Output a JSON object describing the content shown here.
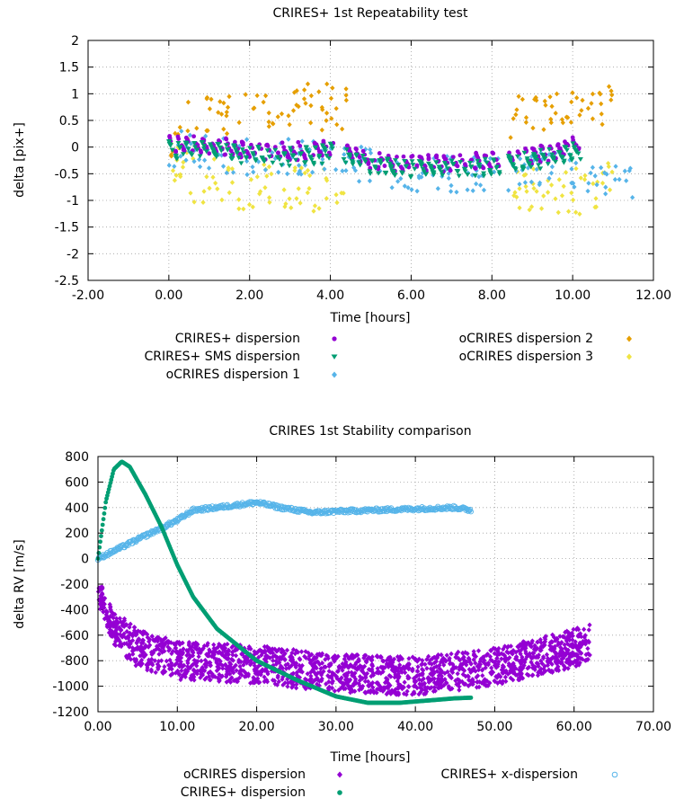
{
  "chart_data": [
    {
      "type": "scatter",
      "title": "CRIRES+ 1st Repeatability test",
      "xlabel": "Time [hours]",
      "ylabel": "delta [pix+]",
      "xlim": [
        -2,
        12
      ],
      "ylim": [
        -2.5,
        2
      ],
      "xticks": [
        "-2.00",
        "0.00",
        "2.00",
        "4.00",
        "6.00",
        "8.00",
        "10.00",
        "12.00"
      ],
      "yticks": [
        "2",
        "1.5",
        "1",
        "0.5",
        "0",
        "-0.5",
        "-1",
        "-1.5",
        "-2",
        "-2.5"
      ],
      "grid": true,
      "legend_position": "bottom",
      "series": [
        {
          "name": "CRIRES+ dispersion",
          "color": "#9400d3",
          "marker": "circle",
          "segments": [
            [
              0,
              0.05
            ],
            [
              1.0,
              0.05
            ],
            [
              1.9,
              -0.05
            ],
            [
              3.0,
              -0.1
            ],
            [
              4.1,
              0.0
            ],
            [
              5.0,
              -0.25
            ],
            [
              6.0,
              -0.3
            ],
            [
              7.0,
              -0.3
            ],
            [
              8.0,
              -0.25
            ],
            [
              9.0,
              -0.15
            ],
            [
              10.0,
              0.0
            ],
            [
              10.2,
              0.05
            ]
          ],
          "gaps": [
            [
              4.1,
              4.3
            ],
            [
              8.2,
              8.4
            ]
          ]
        },
        {
          "name": "CRIRES+ SMS dispersion",
          "color": "#009e73",
          "marker": "triangle-down",
          "segments": [
            [
              0,
              -0.05
            ],
            [
              1.0,
              -0.05
            ],
            [
              1.9,
              -0.15
            ],
            [
              3.0,
              -0.2
            ],
            [
              4.1,
              -0.1
            ],
            [
              5.0,
              -0.35
            ],
            [
              6.0,
              -0.4
            ],
            [
              7.0,
              -0.4
            ],
            [
              8.0,
              -0.35
            ],
            [
              9.0,
              -0.25
            ],
            [
              10.0,
              -0.1
            ],
            [
              10.2,
              -0.05
            ]
          ],
          "gaps": [
            [
              4.1,
              4.3
            ],
            [
              8.2,
              8.4
            ]
          ]
        },
        {
          "name": "oCRIRES dispersion 1",
          "color": "#56b4e9",
          "marker": "diamond",
          "segments": [
            [
              0,
              0.0
            ],
            [
              2.0,
              -0.2
            ],
            [
              4.0,
              -0.2
            ],
            [
              6.0,
              -0.5
            ],
            [
              8.0,
              -0.5
            ],
            [
              10.0,
              -0.4
            ],
            [
              11.8,
              -0.8
            ]
          ],
          "gaps": []
        },
        {
          "name": "oCRIRES dispersion 2",
          "color": "#e69f00",
          "marker": "diamond",
          "segments": [
            [
              0,
              0.0
            ],
            [
              0.6,
              0.5
            ],
            [
              1.5,
              0.6
            ],
            [
              2.5,
              0.7
            ],
            [
              3.5,
              0.8
            ],
            [
              4.3,
              0.7
            ],
            [
              8.5,
              0.6
            ],
            [
              9.5,
              0.7
            ],
            [
              10.5,
              0.8
            ],
            [
              11.0,
              0.9
            ]
          ],
          "gaps": [
            [
              4.4,
              8.4
            ]
          ]
        },
        {
          "name": "oCRIRES dispersion 3",
          "color": "#f0e442",
          "marker": "diamond",
          "segments": [
            [
              0,
              -0.2
            ],
            [
              0.6,
              -0.6
            ],
            [
              1.5,
              -0.7
            ],
            [
              2.5,
              -0.75
            ],
            [
              3.5,
              -0.75
            ],
            [
              4.3,
              -0.8
            ],
            [
              8.5,
              -0.8
            ],
            [
              9.5,
              -0.85
            ],
            [
              10.5,
              -0.8
            ],
            [
              11.0,
              -0.7
            ]
          ],
          "gaps": [
            [
              4.4,
              8.4
            ]
          ]
        }
      ]
    },
    {
      "type": "scatter",
      "title": "CRIRES 1st Stability comparison",
      "xlabel": "Time [hours]",
      "ylabel": "delta RV [m/s]",
      "xlim": [
        0,
        70
      ],
      "ylim": [
        -1200,
        800
      ],
      "xticks": [
        "0.00",
        "10.00",
        "20.00",
        "30.00",
        "40.00",
        "50.00",
        "60.00",
        "70.00"
      ],
      "yticks": [
        "800",
        "600",
        "400",
        "200",
        "0",
        "-200",
        "-400",
        "-600",
        "-800",
        "-1000",
        "-1200"
      ],
      "grid": true,
      "legend_position": "bottom",
      "series": [
        {
          "name": "oCRIRES dispersion",
          "color": "#9400d3",
          "marker": "diamond",
          "trend": [
            [
              0,
              -250
            ],
            [
              2,
              -550
            ],
            [
              5,
              -700
            ],
            [
              10,
              -800
            ],
            [
              20,
              -830
            ],
            [
              30,
              -900
            ],
            [
              40,
              -920
            ],
            [
              50,
              -850
            ],
            [
              55,
              -780
            ],
            [
              60,
              -700
            ],
            [
              62,
              -650
            ]
          ],
          "spread": 300
        },
        {
          "name": "CRIRES+ x-dispersion",
          "color": "#56b4e9",
          "marker": "open-circle",
          "trend": [
            [
              0,
              0
            ],
            [
              5,
              150
            ],
            [
              10,
              300
            ],
            [
              12,
              380
            ],
            [
              15,
              400
            ],
            [
              20,
              440
            ],
            [
              23,
              400
            ],
            [
              27,
              360
            ],
            [
              30,
              370
            ],
            [
              35,
              380
            ],
            [
              40,
              390
            ],
            [
              45,
              400
            ],
            [
              47,
              380
            ]
          ],
          "spread": 30
        },
        {
          "name": "CRIRES+ dispersion",
          "color": "#009e73",
          "marker": "circle",
          "trend": [
            [
              0,
              0
            ],
            [
              1,
              450
            ],
            [
              2,
              700
            ],
            [
              3,
              760
            ],
            [
              4,
              720
            ],
            [
              6,
              500
            ],
            [
              8,
              250
            ],
            [
              10,
              -50
            ],
            [
              12,
              -300
            ],
            [
              15,
              -550
            ],
            [
              20,
              -800
            ],
            [
              25,
              -950
            ],
            [
              30,
              -1080
            ],
            [
              34,
              -1130
            ],
            [
              38,
              -1130
            ],
            [
              42,
              -1110
            ],
            [
              45,
              -1095
            ],
            [
              47,
              -1090
            ]
          ],
          "spread": 0
        }
      ]
    }
  ]
}
